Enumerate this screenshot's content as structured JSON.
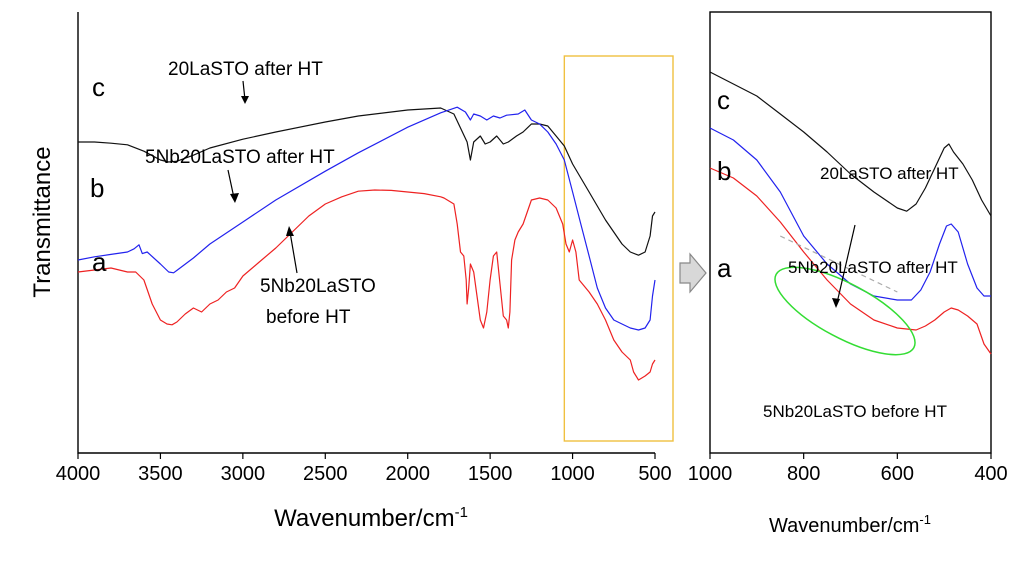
{
  "colors": {
    "series_a": "#ee2222",
    "series_b": "#2222ee",
    "series_c": "#111111",
    "highlight_box": "#f0c040",
    "ellipse": "#33dd33",
    "dashed_guide": "#aaaaaa",
    "arrow_fill": "#d8d8d8"
  },
  "chart_data": [
    {
      "type": "line",
      "panel": "left",
      "ylabel": "Transmittance",
      "xlabel_base": "Wavenumber/cm",
      "xlabel_sup": "-1",
      "xlim": [
        4000,
        500
      ],
      "x_reversed": true,
      "xticks": [
        4000,
        3500,
        3000,
        2500,
        2000,
        1500,
        1000,
        500
      ],
      "y_tick_labels": false,
      "grid": false,
      "highlight_region": [
        1050,
        500
      ],
      "series": [
        {
          "id": "c",
          "letter": "c",
          "name": "20LaSTO after HT",
          "color_key": "series_c",
          "points": [
            [
              4000,
              0.745
            ],
            [
              3900,
              0.745
            ],
            [
              3800,
              0.742
            ],
            [
              3700,
              0.738
            ],
            [
              3600,
              0.722
            ],
            [
              3500,
              0.7
            ],
            [
              3450,
              0.695
            ],
            [
              3400,
              0.697
            ],
            [
              3300,
              0.712
            ],
            [
              3200,
              0.73
            ],
            [
              3000,
              0.752
            ],
            [
              2800,
              0.77
            ],
            [
              2500,
              0.795
            ],
            [
              2300,
              0.81
            ],
            [
              2000,
              0.825
            ],
            [
              1800,
              0.83
            ],
            [
              1720,
              0.815
            ],
            [
              1680,
              0.78
            ],
            [
              1640,
              0.745
            ],
            [
              1620,
              0.7
            ],
            [
              1600,
              0.745
            ],
            [
              1560,
              0.76
            ],
            [
              1530,
              0.74
            ],
            [
              1500,
              0.745
            ],
            [
              1460,
              0.76
            ],
            [
              1420,
              0.74
            ],
            [
              1390,
              0.745
            ],
            [
              1340,
              0.76
            ],
            [
              1300,
              0.77
            ],
            [
              1250,
              0.79
            ],
            [
              1200,
              0.79
            ],
            [
              1150,
              0.785
            ],
            [
              1100,
              0.76
            ],
            [
              1050,
              0.735
            ],
            [
              1000,
              0.69
            ],
            [
              900,
              0.62
            ],
            [
              800,
              0.55
            ],
            [
              700,
              0.49
            ],
            [
              650,
              0.47
            ],
            [
              600,
              0.462
            ],
            [
              560,
              0.47
            ],
            [
              530,
              0.51
            ],
            [
              515,
              0.56
            ],
            [
              500,
              0.57
            ]
          ]
        },
        {
          "id": "b",
          "letter": "b",
          "name": "5Nb20LaSTO after HT",
          "color_key": "series_b",
          "points": [
            [
              4000,
              0.45
            ],
            [
              3900,
              0.458
            ],
            [
              3800,
              0.464
            ],
            [
              3700,
              0.47
            ],
            [
              3660,
              0.478
            ],
            [
              3630,
              0.488
            ],
            [
              3610,
              0.466
            ],
            [
              3580,
              0.47
            ],
            [
              3500,
              0.44
            ],
            [
              3450,
              0.42
            ],
            [
              3420,
              0.418
            ],
            [
              3400,
              0.424
            ],
            [
              3300,
              0.455
            ],
            [
              3200,
              0.49
            ],
            [
              3000,
              0.545
            ],
            [
              2800,
              0.6
            ],
            [
              2500,
              0.672
            ],
            [
              2300,
              0.718
            ],
            [
              2000,
              0.782
            ],
            [
              1800,
              0.818
            ],
            [
              1700,
              0.832
            ],
            [
              1650,
              0.82
            ],
            [
              1620,
              0.8
            ],
            [
              1600,
              0.815
            ],
            [
              1560,
              0.81
            ],
            [
              1520,
              0.8
            ],
            [
              1480,
              0.81
            ],
            [
              1440,
              0.805
            ],
            [
              1400,
              0.812
            ],
            [
              1330,
              0.815
            ],
            [
              1290,
              0.825
            ],
            [
              1250,
              0.8
            ],
            [
              1200,
              0.79
            ],
            [
              1150,
              0.77
            ],
            [
              1100,
              0.74
            ],
            [
              1050,
              0.7
            ],
            [
              1000,
              0.62
            ],
            [
              950,
              0.54
            ],
            [
              900,
              0.46
            ],
            [
              850,
              0.38
            ],
            [
              800,
              0.33
            ],
            [
              750,
              0.3
            ],
            [
              700,
              0.29
            ],
            [
              650,
              0.28
            ],
            [
              600,
              0.275
            ],
            [
              560,
              0.28
            ],
            [
              530,
              0.3
            ],
            [
              515,
              0.36
            ],
            [
              500,
              0.4
            ]
          ]
        },
        {
          "id": "a",
          "letter": "a",
          "name": "5Nb20LaSTO before HT",
          "annotation_lines": [
            "5Nb20LaSTO",
            "before HT"
          ],
          "color_key": "series_a",
          "points": [
            [
              4000,
              0.42
            ],
            [
              3900,
              0.425
            ],
            [
              3800,
              0.43
            ],
            [
              3700,
              0.42
            ],
            [
              3650,
              0.42
            ],
            [
              3600,
              0.4
            ],
            [
              3550,
              0.34
            ],
            [
              3500,
              0.3
            ],
            [
              3460,
              0.29
            ],
            [
              3430,
              0.288
            ],
            [
              3400,
              0.295
            ],
            [
              3350,
              0.315
            ],
            [
              3300,
              0.33
            ],
            [
              3250,
              0.32
            ],
            [
              3200,
              0.34
            ],
            [
              3150,
              0.35
            ],
            [
              3100,
              0.37
            ],
            [
              3050,
              0.38
            ],
            [
              3000,
              0.41
            ],
            [
              2900,
              0.445
            ],
            [
              2800,
              0.48
            ],
            [
              2700,
              0.52
            ],
            [
              2600,
              0.56
            ],
            [
              2500,
              0.59
            ],
            [
              2400,
              0.608
            ],
            [
              2300,
              0.622
            ],
            [
              2200,
              0.625
            ],
            [
              2100,
              0.624
            ],
            [
              2000,
              0.62
            ],
            [
              1900,
              0.616
            ],
            [
              1800,
              0.608
            ],
            [
              1780,
              0.605
            ],
            [
              1720,
              0.59
            ],
            [
              1700,
              0.54
            ],
            [
              1680,
              0.47
            ],
            [
              1660,
              0.46
            ],
            [
              1645,
              0.4
            ],
            [
              1640,
              0.34
            ],
            [
              1630,
              0.38
            ],
            [
              1620,
              0.44
            ],
            [
              1600,
              0.42
            ],
            [
              1580,
              0.36
            ],
            [
              1560,
              0.3
            ],
            [
              1540,
              0.28
            ],
            [
              1520,
              0.32
            ],
            [
              1500,
              0.4
            ],
            [
              1480,
              0.46
            ],
            [
              1460,
              0.47
            ],
            [
              1440,
              0.39
            ],
            [
              1420,
              0.31
            ],
            [
              1400,
              0.3
            ],
            [
              1390,
              0.28
            ],
            [
              1380,
              0.32
            ],
            [
              1370,
              0.45
            ],
            [
              1350,
              0.5
            ],
            [
              1330,
              0.52
            ],
            [
              1300,
              0.54
            ],
            [
              1250,
              0.6
            ],
            [
              1200,
              0.605
            ],
            [
              1150,
              0.6
            ],
            [
              1100,
              0.58
            ],
            [
              1060,
              0.54
            ],
            [
              1040,
              0.49
            ],
            [
              1020,
              0.47
            ],
            [
              1000,
              0.5
            ],
            [
              980,
              0.47
            ],
            [
              960,
              0.4
            ],
            [
              900,
              0.37
            ],
            [
              850,
              0.34
            ],
            [
              800,
              0.3
            ],
            [
              750,
              0.25
            ],
            [
              700,
              0.22
            ],
            [
              650,
              0.2
            ],
            [
              630,
              0.17
            ],
            [
              600,
              0.15
            ],
            [
              560,
              0.16
            ],
            [
              530,
              0.17
            ],
            [
              515,
              0.19
            ],
            [
              500,
              0.2
            ]
          ]
        }
      ]
    },
    {
      "type": "line",
      "panel": "right",
      "xlabel_base": "Wavenumber/cm",
      "xlabel_sup": "-1",
      "xlim": [
        1000,
        400
      ],
      "x_reversed": true,
      "xticks": [
        1000,
        800,
        600,
        400
      ],
      "y_tick_labels": false,
      "grid": false,
      "series": [
        {
          "id": "c",
          "letter": "c",
          "name": "20LaSTO after HT",
          "color_key": "series_c",
          "points": [
            [
              1000,
              0.92
            ],
            [
              950,
              0.89
            ],
            [
              900,
              0.86
            ],
            [
              850,
              0.815
            ],
            [
              800,
              0.77
            ],
            [
              750,
              0.72
            ],
            [
              700,
              0.665
            ],
            [
              650,
              0.62
            ],
            [
              600,
              0.58
            ],
            [
              580,
              0.572
            ],
            [
              560,
              0.59
            ],
            [
              540,
              0.63
            ],
            [
              520,
              0.68
            ],
            [
              500,
              0.73
            ],
            [
              490,
              0.74
            ],
            [
              480,
              0.72
            ],
            [
              460,
              0.69
            ],
            [
              440,
              0.65
            ],
            [
              420,
              0.6
            ],
            [
              400,
              0.56
            ]
          ]
        },
        {
          "id": "b",
          "letter": "b",
          "name": "5Nb20LaSTO after HT",
          "color_key": "series_b",
          "points": [
            [
              1000,
              0.78
            ],
            [
              950,
              0.75
            ],
            [
              900,
              0.7
            ],
            [
              850,
              0.62
            ],
            [
              800,
              0.51
            ],
            [
              750,
              0.44
            ],
            [
              700,
              0.39
            ],
            [
              650,
              0.36
            ],
            [
              600,
              0.35
            ],
            [
              570,
              0.35
            ],
            [
              550,
              0.375
            ],
            [
              530,
              0.42
            ],
            [
              510,
              0.49
            ],
            [
              495,
              0.535
            ],
            [
              485,
              0.54
            ],
            [
              470,
              0.52
            ],
            [
              450,
              0.44
            ],
            [
              430,
              0.38
            ],
            [
              415,
              0.36
            ],
            [
              400,
              0.36
            ]
          ]
        },
        {
          "id": "a",
          "letter": "a",
          "name": "5Nb20LaSTO before HT",
          "color_key": "series_a",
          "points": [
            [
              1000,
              0.68
            ],
            [
              950,
              0.655
            ],
            [
              900,
              0.61
            ],
            [
              850,
              0.545
            ],
            [
              800,
              0.47
            ],
            [
              750,
              0.4
            ],
            [
              700,
              0.34
            ],
            [
              650,
              0.3
            ],
            [
              600,
              0.28
            ],
            [
              560,
              0.275
            ],
            [
              540,
              0.285
            ],
            [
              520,
              0.3
            ],
            [
              500,
              0.32
            ],
            [
              485,
              0.33
            ],
            [
              470,
              0.325
            ],
            [
              450,
              0.31
            ],
            [
              430,
              0.29
            ],
            [
              415,
              0.24
            ],
            [
              400,
              0.215
            ]
          ]
        }
      ],
      "dashed_guide": [
        [
          850,
          0.51
        ],
        [
          600,
          0.37
        ]
      ]
    }
  ]
}
